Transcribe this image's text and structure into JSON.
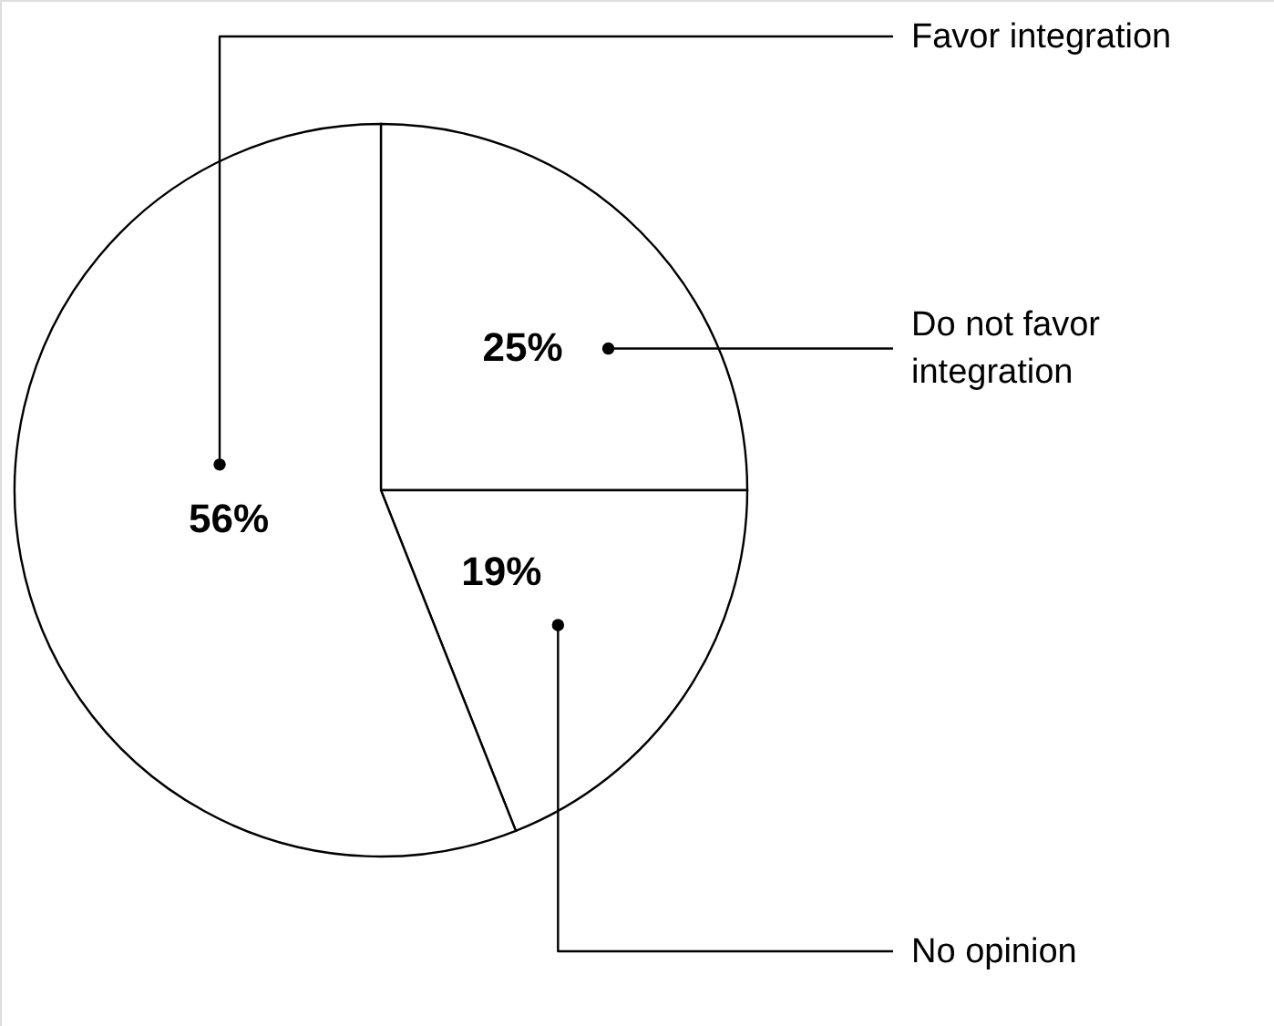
{
  "chart_data": {
    "type": "pie",
    "categories": [
      "Do not favor integration",
      "No opinion",
      "Favor integration"
    ],
    "values": [
      25,
      19,
      56
    ],
    "colors": [
      "#ffffff",
      "#ffffff",
      "#ffffff"
    ],
    "value_labels": [
      "25%",
      "19%",
      "56%"
    ]
  }
}
